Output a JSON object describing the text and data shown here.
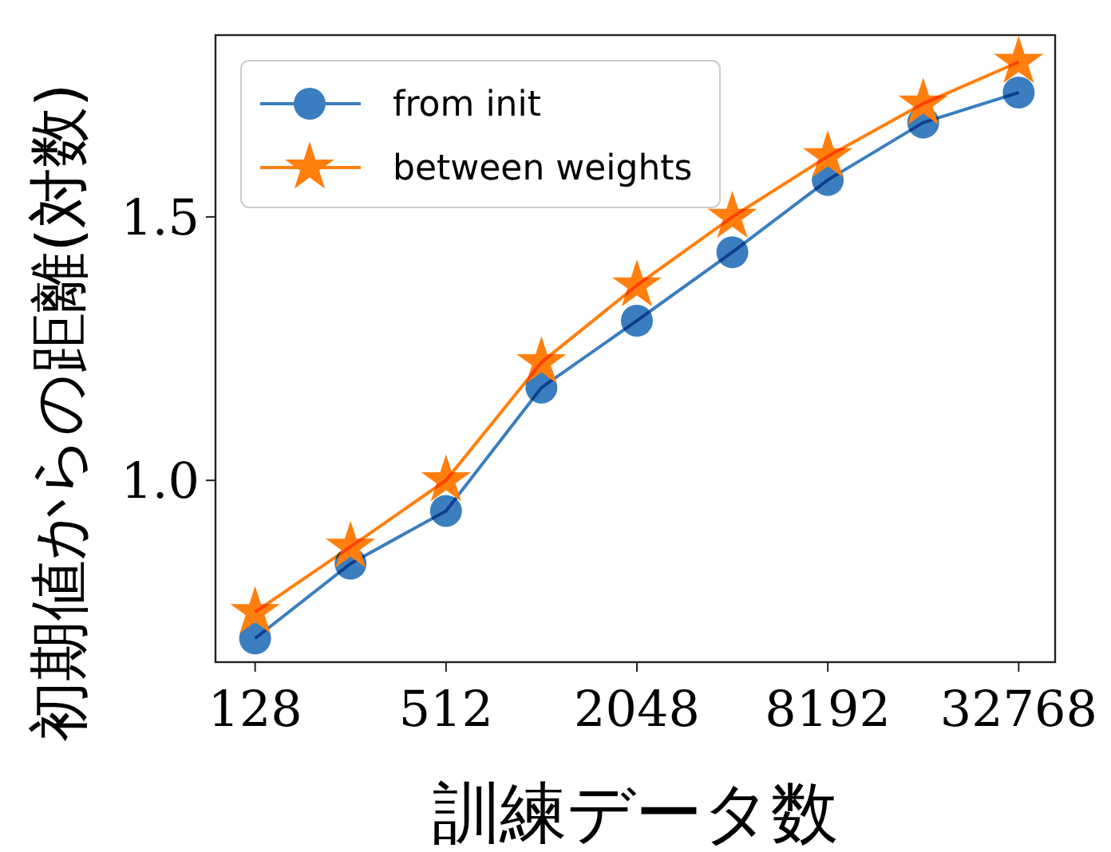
{
  "chart_data": {
    "type": "line",
    "xlabel": "訓練データ数",
    "ylabel": "初期値からの距離(対数)",
    "log": "x",
    "x": [
      128,
      256,
      512,
      1024,
      2048,
      4096,
      8192,
      16384,
      32768
    ],
    "xlim": [
      96,
      42700
    ],
    "xticks": [
      128,
      512,
      2048,
      8192,
      32768
    ],
    "ylim": [
      0.655,
      1.845
    ],
    "yticks": [
      {
        "value": 1.0,
        "label": "1.0"
      },
      1.5
    ],
    "legend": "top left",
    "series": [
      {
        "name": "from init",
        "color": "#3a7ebf",
        "marker": "circle",
        "values": [
          0.7,
          0.842,
          0.942,
          1.176,
          1.303,
          1.433,
          1.57,
          1.679,
          1.736
        ]
      },
      {
        "name": "between weights",
        "color": "#ff7f0e",
        "marker": "star",
        "values": [
          0.75,
          0.874,
          1.0,
          1.224,
          1.37,
          1.5,
          1.615,
          1.715,
          1.794
        ]
      }
    ]
  }
}
